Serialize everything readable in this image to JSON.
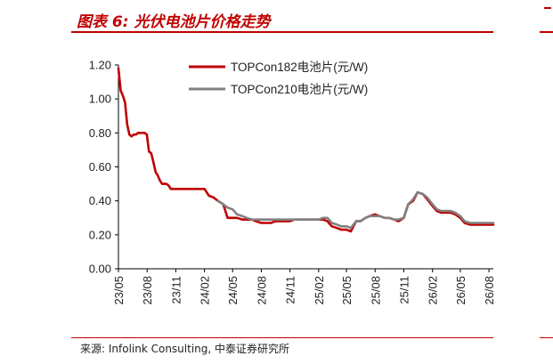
{
  "header": {
    "title": "图表 6:  光伏电池片价格走势"
  },
  "footer": {
    "source": "来源:  Infolink Consulting, 中泰证券研究所"
  },
  "colors": {
    "accent": "#c00000"
  },
  "chart_data": {
    "type": "line",
    "title": "图表 6:  光伏电池片价格走势",
    "xlabel": "",
    "ylabel": "",
    "ylim": [
      0,
      1.2
    ],
    "yticks": [
      "0.00",
      "0.20",
      "0.40",
      "0.60",
      "0.80",
      "1.00",
      "1.20"
    ],
    "x_tick_labels": [
      "23/05",
      "23/08",
      "23/11",
      "24/02",
      "24/05",
      "24/08",
      "24/11",
      "25/02",
      "25/05",
      "25/08",
      "25/11",
      "26/02",
      "26/05",
      "26/08"
    ],
    "grid": false,
    "legend_position": "top-right",
    "series": [
      {
        "name": "TOPCon182电池片(元/W)",
        "color": "#c00000",
        "x": [
          "2023-05-01",
          "2023-05-08",
          "2023-05-15",
          "2023-05-22",
          "2023-05-29",
          "2023-06-05",
          "2023-06-12",
          "2023-06-19",
          "2023-06-26",
          "2023-07-03",
          "2023-07-10",
          "2023-07-17",
          "2023-07-24",
          "2023-07-31",
          "2023-08-07",
          "2023-08-14",
          "2023-08-21",
          "2023-08-28",
          "2023-09-04",
          "2023-09-11",
          "2023-09-18",
          "2023-09-25",
          "2023-10-02",
          "2023-10-09",
          "2023-10-16",
          "2023-10-23",
          "2023-10-30",
          "2023-11-06",
          "2023-11-13",
          "2023-11-20",
          "2023-11-27",
          "2023-12-04",
          "2023-12-11",
          "2023-12-18",
          "2023-12-25",
          "2024-01-01",
          "2024-01-15",
          "2024-02-01",
          "2024-02-15",
          "2024-03-01",
          "2024-03-15",
          "2024-04-01",
          "2024-04-15",
          "2024-05-01",
          "2024-05-15",
          "2024-06-01",
          "2024-06-15",
          "2024-07-01",
          "2024-07-15",
          "2024-08-01",
          "2024-08-15",
          "2024-09-01",
          "2024-09-15",
          "2024-10-01",
          "2024-10-15",
          "2024-11-01",
          "2024-11-15",
          "2024-12-01",
          "2024-12-15",
          "2025-01-01",
          "2025-01-15",
          "2025-02-01",
          "2025-02-15",
          "2025-03-01",
          "2025-03-15",
          "2025-04-01",
          "2025-04-15",
          "2025-05-01",
          "2025-05-15",
          "2025-06-01",
          "2025-06-15",
          "2025-07-01",
          "2025-07-15",
          "2025-08-01",
          "2025-08-15",
          "2025-09-01",
          "2025-09-15",
          "2025-10-01",
          "2025-10-15",
          "2025-11-01",
          "2025-11-15",
          "2025-12-01",
          "2025-12-15",
          "2026-01-01",
          "2026-01-15",
          "2026-02-01",
          "2026-02-15",
          "2026-03-01",
          "2026-03-15",
          "2026-04-01",
          "2026-04-15",
          "2026-05-01",
          "2026-05-15",
          "2026-06-01",
          "2026-06-15",
          "2026-07-01",
          "2026-07-15",
          "2026-08-01",
          "2026-08-15"
        ],
        "values": [
          1.18,
          1.05,
          1.02,
          0.98,
          0.85,
          0.79,
          0.78,
          0.79,
          0.79,
          0.8,
          0.8,
          0.8,
          0.8,
          0.79,
          0.69,
          0.68,
          0.63,
          0.57,
          0.55,
          0.52,
          0.5,
          0.5,
          0.5,
          0.49,
          0.47,
          0.47,
          0.47,
          0.47,
          0.47,
          0.47,
          0.47,
          0.47,
          0.47,
          0.47,
          0.47,
          0.47,
          0.47,
          0.47,
          0.43,
          0.42,
          0.4,
          0.38,
          0.3,
          0.3,
          0.3,
          0.29,
          0.29,
          0.29,
          0.28,
          0.27,
          0.27,
          0.27,
          0.28,
          0.28,
          0.28,
          0.28,
          0.29,
          0.29,
          0.29,
          0.29,
          0.29,
          0.29,
          0.29,
          0.28,
          0.25,
          0.24,
          0.23,
          0.23,
          0.22,
          0.28,
          0.28,
          0.3,
          0.31,
          0.32,
          0.31,
          0.3,
          0.3,
          0.29,
          0.28,
          0.3,
          0.38,
          0.4,
          0.45,
          0.44,
          0.41,
          0.37,
          0.34,
          0.33,
          0.33,
          0.33,
          0.32,
          0.3,
          0.27,
          0.26,
          0.26,
          0.26,
          0.26,
          0.26,
          0.26
        ]
      },
      {
        "name": "TOPCon210电池片(元/W)",
        "color": "#808080",
        "x": [
          "2024-03-15",
          "2024-04-01",
          "2024-04-15",
          "2024-05-01",
          "2024-05-15",
          "2024-06-01",
          "2024-06-15",
          "2024-07-01",
          "2024-07-15",
          "2024-08-01",
          "2024-08-15",
          "2024-09-01",
          "2024-09-15",
          "2024-10-01",
          "2024-10-15",
          "2024-11-01",
          "2024-11-15",
          "2024-12-01",
          "2024-12-15",
          "2025-01-01",
          "2025-01-15",
          "2025-02-01",
          "2025-02-15",
          "2025-03-01",
          "2025-03-15",
          "2025-04-01",
          "2025-04-15",
          "2025-05-01",
          "2025-05-15",
          "2025-06-01",
          "2025-06-15",
          "2025-07-01",
          "2025-07-15",
          "2025-08-01",
          "2025-08-15",
          "2025-09-01",
          "2025-09-15",
          "2025-10-01",
          "2025-10-15",
          "2025-11-01",
          "2025-11-15",
          "2025-12-01",
          "2025-12-15",
          "2026-01-01",
          "2026-01-15",
          "2026-02-01",
          "2026-02-15",
          "2026-03-01",
          "2026-03-15",
          "2026-04-01",
          "2026-04-15",
          "2026-05-01",
          "2026-05-15",
          "2026-06-01",
          "2026-06-15",
          "2026-07-01",
          "2026-07-15",
          "2026-08-01",
          "2026-08-15"
        ],
        "values": [
          0.4,
          0.38,
          0.36,
          0.35,
          0.32,
          0.31,
          0.3,
          0.29,
          0.29,
          0.29,
          0.29,
          0.29,
          0.29,
          0.29,
          0.29,
          0.29,
          0.29,
          0.29,
          0.29,
          0.29,
          0.29,
          0.29,
          0.3,
          0.3,
          0.27,
          0.26,
          0.25,
          0.25,
          0.24,
          0.28,
          0.28,
          0.3,
          0.31,
          0.31,
          0.31,
          0.3,
          0.3,
          0.29,
          0.29,
          0.3,
          0.38,
          0.41,
          0.45,
          0.44,
          0.42,
          0.38,
          0.35,
          0.34,
          0.34,
          0.34,
          0.33,
          0.31,
          0.28,
          0.27,
          0.27,
          0.27,
          0.27,
          0.27,
          0.27
        ]
      }
    ]
  }
}
